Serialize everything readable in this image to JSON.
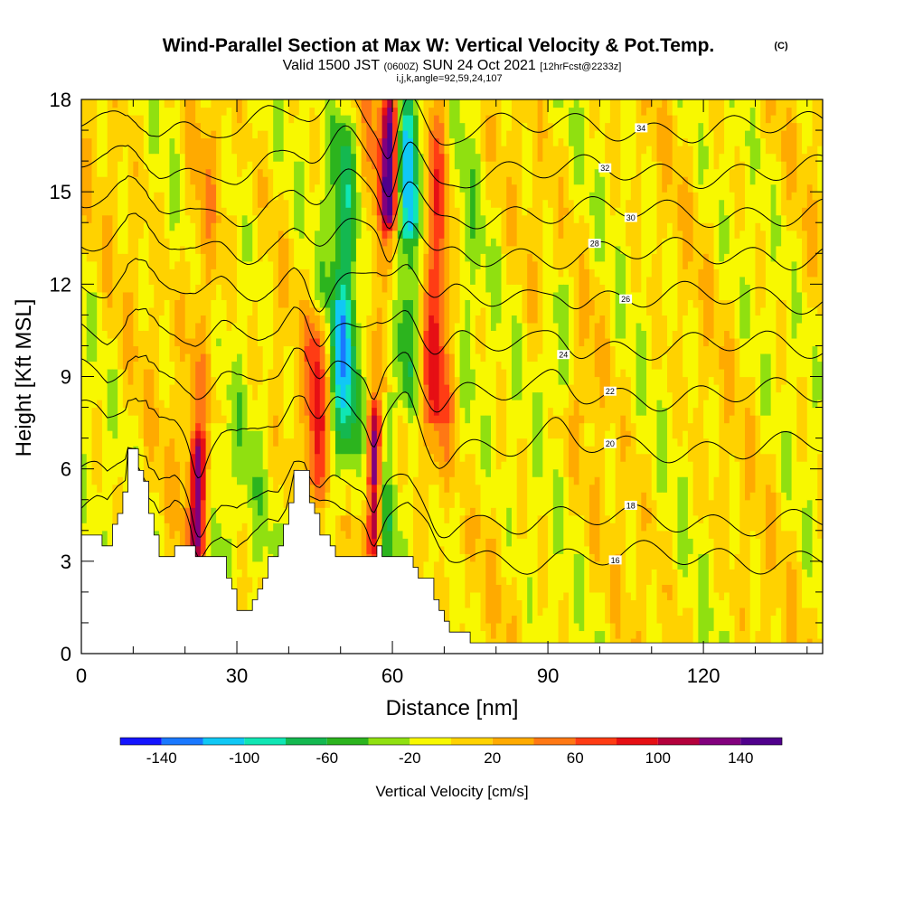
{
  "title": {
    "main": "Wind-Parallel Section at Max W: Vertical Velocity & Pot.Temp.",
    "copyright": "(C)",
    "valid_prefix": "Valid 1500 JST",
    "valid_utc": "(0600Z)",
    "valid_date": "SUN 24 Oct 2021",
    "forecast": "[12hrFcst@2233z]",
    "indices": "i,j,k,angle=92,59,24,107"
  },
  "chart_data": {
    "type": "heatmap",
    "xlabel": "Distance [nm]",
    "ylabel": "Height [Kft MSL]",
    "xlim": [
      0,
      143
    ],
    "ylim": [
      0,
      18
    ],
    "x_ticks": [
      "0",
      "30",
      "60",
      "90",
      "120"
    ],
    "y_ticks": [
      "0",
      "3",
      "6",
      "9",
      "12",
      "15",
      "18"
    ],
    "x_tick_values": [
      0,
      30,
      60,
      90,
      120
    ],
    "y_tick_values": [
      0,
      3,
      6,
      9,
      12,
      15,
      18
    ],
    "x_minor_step": 10,
    "y_minor_step": 1,
    "colorbar": {
      "label": "Vertical Velocity [cm/s]",
      "bounds": [
        -160,
        -140,
        -120,
        -100,
        -80,
        -60,
        -40,
        -20,
        0,
        20,
        40,
        60,
        80,
        100,
        120,
        140,
        160
      ],
      "tick_labels": [
        "-140",
        "-100",
        "-60",
        "-20",
        "20",
        "60",
        "100",
        "140"
      ],
      "tick_values": [
        -140,
        -100,
        -60,
        -20,
        20,
        60,
        100,
        140
      ],
      "colors": [
        "#1414ff",
        "#1a78ff",
        "#10c8f5",
        "#10e6b4",
        "#14b850",
        "#2cb41e",
        "#90e010",
        "#f8f800",
        "#ffd200",
        "#ffaa00",
        "#ff7814",
        "#ff3c14",
        "#e60f14",
        "#b4003c",
        "#82007d",
        "#50008c"
      ]
    },
    "terrain_kft": [
      [
        0,
        3.7
      ],
      [
        3,
        3.7
      ],
      [
        5,
        3.4
      ],
      [
        7,
        4.7
      ],
      [
        8.5,
        5.5
      ],
      [
        9,
        6.5
      ],
      [
        10.5,
        6.5
      ],
      [
        11,
        6.0
      ],
      [
        12.5,
        5.5
      ],
      [
        13,
        4.5
      ],
      [
        14,
        4.0
      ],
      [
        15,
        3.0
      ],
      [
        17,
        3.0
      ],
      [
        18,
        3.4
      ],
      [
        21,
        3.4
      ],
      [
        22,
        3.0
      ],
      [
        27,
        3.0
      ],
      [
        28,
        2.5
      ],
      [
        30,
        1.4
      ],
      [
        32,
        1.4
      ],
      [
        34,
        2.0
      ],
      [
        36,
        3.0
      ],
      [
        38,
        3.4
      ],
      [
        40,
        5.0
      ],
      [
        41,
        5.8
      ],
      [
        43,
        5.8
      ],
      [
        44,
        5.0
      ],
      [
        46,
        4.0
      ],
      [
        48,
        3.5
      ],
      [
        50,
        3.0
      ],
      [
        53,
        3.0
      ],
      [
        55,
        3.2
      ],
      [
        57,
        3.4
      ],
      [
        58,
        3.0
      ],
      [
        63,
        3.0
      ],
      [
        64,
        2.7
      ],
      [
        67,
        2.3
      ],
      [
        69,
        1.4
      ],
      [
        71,
        0.8
      ],
      [
        73,
        0.6
      ],
      [
        77,
        0.4
      ],
      [
        143,
        0.4
      ]
    ],
    "theta_contours": [
      {
        "label": "16",
        "base_kft": 3.9,
        "label_x": 103
      },
      {
        "label": "18",
        "base_kft": 5.0,
        "label_x": 106
      },
      {
        "label": "20",
        "base_kft": 7.2,
        "label_x": 102
      },
      {
        "label": "22",
        "base_kft": 8.8,
        "label_x": 102
      },
      {
        "label": "24",
        "base_kft": 10.3,
        "label_x": 93
      },
      {
        "label": "26",
        "base_kft": 11.8,
        "label_x": 105
      },
      {
        "label": "28",
        "base_kft": 13.2,
        "label_x": 99
      },
      {
        "label": "30",
        "base_kft": 14.5,
        "label_x": 106
      },
      {
        "label": "32",
        "base_kft": 15.8,
        "label_x": 101
      },
      {
        "label": "34",
        "base_kft": 17.2,
        "label_x": 108
      }
    ],
    "velocity_features": [
      {
        "x": 22.5,
        "zmin": 3,
        "zmax": 7,
        "width": 1.5,
        "peak": 105
      },
      {
        "x": 23.5,
        "zmin": 3,
        "zmax": 18,
        "width": 3.5,
        "peak": 35
      },
      {
        "x": 45.5,
        "zmin": 5,
        "zmax": 11,
        "width": 2.2,
        "peak": 80
      },
      {
        "x": 50.5,
        "zmin": 6,
        "zmax": 18,
        "width": 3,
        "peak": -70
      },
      {
        "x": 56.5,
        "zmin": 3.2,
        "zmax": 8,
        "width": 1.2,
        "peak": 115
      },
      {
        "x": 59.5,
        "zmin": 14,
        "zmax": 18,
        "width": 1.6,
        "peak": 130
      },
      {
        "x": 63,
        "zmin": 8,
        "zmax": 18,
        "width": 2.4,
        "peak": -80
      },
      {
        "x": 68.5,
        "zmin": 5,
        "zmax": 18,
        "width": 2.5,
        "peak": 45
      },
      {
        "x": 92,
        "zmin": 8,
        "zmax": 12,
        "width": 2.5,
        "peak": -40
      }
    ]
  }
}
